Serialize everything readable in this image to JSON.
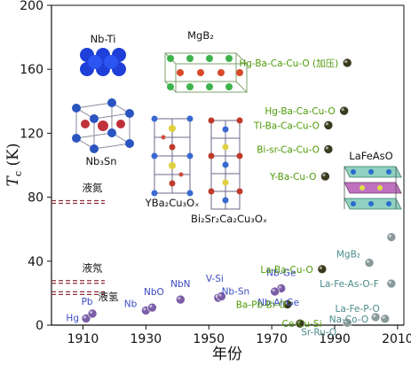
{
  "chart_data": {
    "type": "scatter",
    "title": "",
    "xlabel": "年份",
    "ylabel": "Tc (K)",
    "ylabel_main": "T",
    "ylabel_sub": "c",
    "ylabel_unit": " (K)",
    "xlim": [
      1900,
      2012
    ],
    "ylim": [
      0,
      200
    ],
    "xticks": [
      "1910",
      "1930",
      "1950",
      "1970",
      "1990",
      "2010"
    ],
    "xtick_values": [
      1910,
      1930,
      1950,
      1970,
      1990,
      2010
    ],
    "yticks": [
      "0",
      "40",
      "80",
      "120",
      "160",
      "200"
    ],
    "ytick_values": [
      0,
      40,
      80,
      120,
      160,
      200
    ],
    "reference_lines": [
      {
        "name": "液氮",
        "label": "液氮",
        "y": 77
      },
      {
        "name": "液氖",
        "label": "液氖",
        "y": 27
      },
      {
        "name": "液氢",
        "label": "液氢",
        "y": 20
      }
    ],
    "series": [
      {
        "group": "low-Tc",
        "points": [
          {
            "label": "Hg",
            "x": 1911,
            "y": 4.2
          },
          {
            "label": "Pb",
            "x": 1913,
            "y": 7.2
          },
          {
            "label": "Nb",
            "x": 1930,
            "y": 9.2
          },
          {
            "label": "NbO",
            "x": 1932,
            "y": 11
          },
          {
            "label": "NbN",
            "x": 1941,
            "y": 16
          },
          {
            "label": "V-Si",
            "x": 1953,
            "y": 17.1
          },
          {
            "label": "Nb-Sn",
            "x": 1954,
            "y": 18
          },
          {
            "label": "Nb-Ge",
            "x": 1973,
            "y": 23
          },
          {
            "label": "Nb-Al-Ge",
            "x": 1971,
            "y": 21
          }
        ]
      },
      {
        "group": "cuprates",
        "points": [
          {
            "label": "Ba-Pb-Bi-O",
            "x": 1975,
            "y": 13
          },
          {
            "label": "Ce-Cu-Si",
            "x": 1979,
            "y": 1
          },
          {
            "label": "La-Ba-Cu-O",
            "x": 1986,
            "y": 35
          },
          {
            "label": "Y-Ba-Cu-O",
            "x": 1987,
            "y": 93
          },
          {
            "label": "Bi-sr-Ca-Cu-O",
            "x": 1988,
            "y": 110
          },
          {
            "label": "Tl-Ba-Ca-Cu-O",
            "x": 1988,
            "y": 125
          },
          {
            "label": "Hg-Ba-Ca-Cu-O",
            "x": 1993,
            "y": 134
          },
          {
            "label": "Hg-Ba-Ca-Cu-O (加压)",
            "x": 1994,
            "y": 164
          }
        ]
      },
      {
        "group": "new",
        "points": [
          {
            "label": "Sr-Ru-O",
            "x": 1994,
            "y": 1.5
          },
          {
            "label": "MgB₂",
            "x": 2001,
            "y": 39
          },
          {
            "label": "Na-Co-O",
            "x": 2003,
            "y": 5
          },
          {
            "label": "La-Fe-P-O",
            "x": 2006,
            "y": 4
          },
          {
            "label": "La-Fe-As-O-F",
            "x": 2008,
            "y": 26
          },
          {
            "label": "LaFeAsO",
            "x": 2008,
            "y": 55
          }
        ]
      }
    ],
    "structure_labels": [
      "Nb-Ti",
      "MgB₂",
      "Nb₃Sn",
      "YBa₂Cu₃Oₓ",
      "Bi₂Sr₂Ca₂Cu₃Oₓ",
      "LaFeAsO"
    ],
    "colors": {
      "low_tc_text": "#3b4cc0",
      "low_tc_marker": "#7b5ea7",
      "cuprate_text": "#4e9a06",
      "cuprate_marker": "#3a3a1e",
      "new_text": "#4a8a8a",
      "new_marker": "#8a9a9a",
      "ref_line": "#8b2f3a"
    }
  }
}
